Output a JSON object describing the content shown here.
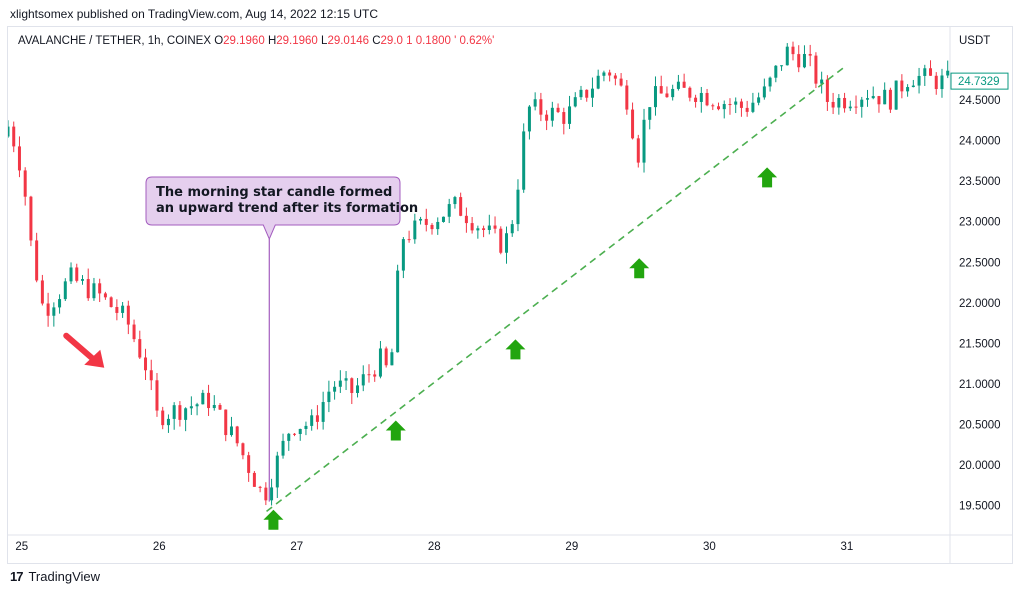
{
  "header": {
    "publisher_line": "xlightsomex published on TradingView.com, Aug 14, 2022 12:15 UTC"
  },
  "legend": {
    "symbol": "AVALANCHE / TETHER, 1h, COINEX",
    "o_label": "O",
    "o_value": "29.1960",
    "h_label": "H",
    "h_value": "29.1960",
    "l_label": "L",
    "l_value": "29.0146",
    "c_label": "C",
    "c_value": "29.0",
    "change": "1   0.1800 ' 0.62%'"
  },
  "footer": {
    "brand": "TradingView",
    "logo_text": "17"
  },
  "colors": {
    "up": "#089981",
    "down": "#f23645",
    "trendline": "#4caf50",
    "arrow_up": "#22a50f",
    "arrow_down": "#f23645",
    "callout_bg": "#e5cfee",
    "callout_border": "#a35cbf",
    "price_tag": "#089981"
  },
  "chart_data": {
    "type": "candlestick",
    "currency": "USDT",
    "current_price": "24.7329",
    "ylim": [
      19.2,
      25.4
    ],
    "y_ticks": [
      "19.5000",
      "20.0000",
      "20.5000",
      "21.0000",
      "21.5000",
      "22.0000",
      "22.5000",
      "23.0000",
      "23.5000",
      "24.0000",
      "24.5000"
    ],
    "x_ticks": [
      {
        "label": "25",
        "day": 25
      },
      {
        "label": "26",
        "day": 26
      },
      {
        "label": "27",
        "day": 27
      },
      {
        "label": "28",
        "day": 28
      },
      {
        "label": "29",
        "day": 29
      },
      {
        "label": "30",
        "day": 30
      },
      {
        "label": "31",
        "day": 31
      }
    ],
    "xlim_day": [
      24.9,
      31.75
    ],
    "anchors": [
      [
        24.9,
        24.05
      ],
      [
        24.95,
        24.2
      ],
      [
        25.05,
        23.6
      ],
      [
        25.1,
        22.8
      ],
      [
        25.2,
        21.9
      ],
      [
        25.4,
        22.3
      ],
      [
        25.6,
        22.1
      ],
      [
        25.8,
        21.8
      ],
      [
        25.95,
        21.2
      ],
      [
        26.02,
        20.6
      ],
      [
        26.2,
        20.7
      ],
      [
        26.4,
        20.8
      ],
      [
        26.6,
        20.3
      ],
      [
        26.8,
        19.6
      ],
      [
        27.0,
        20.5
      ],
      [
        27.15,
        20.5
      ],
      [
        27.3,
        21.0
      ],
      [
        27.45,
        20.9
      ],
      [
        27.65,
        21.3
      ],
      [
        27.72,
        21.1
      ],
      [
        27.8,
        22.8
      ],
      [
        28.0,
        23.0
      ],
      [
        28.2,
        23.2
      ],
      [
        28.4,
        22.9
      ],
      [
        28.55,
        22.7
      ],
      [
        28.62,
        23.1
      ],
      [
        28.72,
        24.4
      ],
      [
        29.0,
        24.3
      ],
      [
        29.15,
        24.6
      ],
      [
        29.3,
        24.9
      ],
      [
        29.45,
        24.5
      ],
      [
        29.52,
        23.8
      ],
      [
        29.6,
        24.5
      ],
      [
        29.75,
        24.6
      ],
      [
        29.95,
        24.6
      ],
      [
        30.1,
        24.5
      ],
      [
        30.3,
        24.4
      ],
      [
        30.45,
        24.6
      ],
      [
        30.6,
        25.1
      ],
      [
        30.75,
        25.0
      ],
      [
        30.9,
        24.5
      ],
      [
        31.0,
        24.5
      ],
      [
        31.2,
        24.6
      ],
      [
        31.35,
        24.5
      ],
      [
        31.5,
        24.8
      ],
      [
        31.72,
        24.73
      ]
    ],
    "trendline": {
      "from": [
        26.78,
        19.43
      ],
      "to": [
        31.0,
        24.93
      ]
    },
    "up_arrows": [
      {
        "day": 26.83,
        "price": 19.4
      },
      {
        "day": 27.72,
        "price": 20.5
      },
      {
        "day": 28.59,
        "price": 21.5
      },
      {
        "day": 29.49,
        "price": 22.5
      },
      {
        "day": 30.42,
        "price": 23.62
      }
    ],
    "down_arrow": {
      "day": 25.6,
      "price": 21.2
    },
    "annotation": {
      "line1": "The morning star candle formed",
      "line2": "an upward trend after its formation",
      "pointer_day": 26.8,
      "pointer_price": 19.55
    }
  }
}
